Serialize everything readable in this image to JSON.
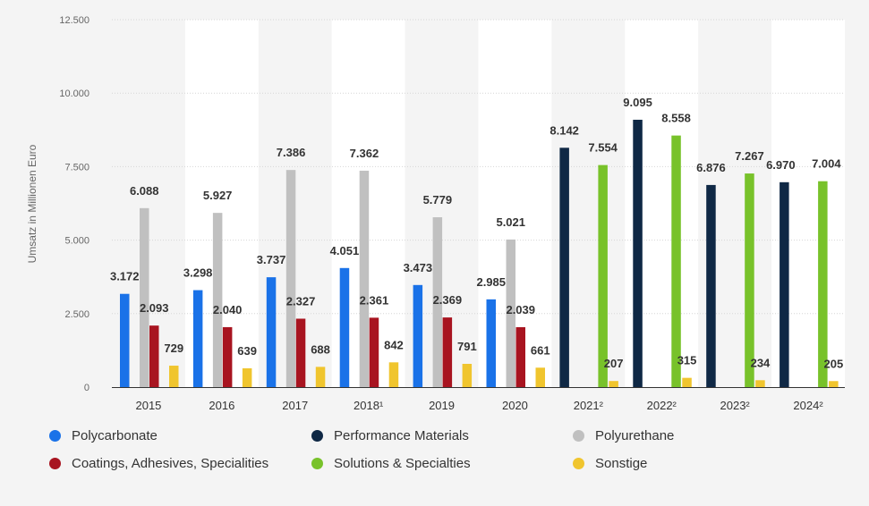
{
  "chart_data": {
    "type": "bar",
    "ylabel": "Umsatz in Millionen Euro",
    "xlabel": "",
    "ylim": [
      0,
      12500
    ],
    "yticks": [
      0,
      2500,
      5000,
      7500,
      10000,
      12500
    ],
    "ytick_labels": [
      "0",
      "2.500",
      "5.000",
      "7.500",
      "10.000",
      "12.500"
    ],
    "categories": [
      "2015",
      "2016",
      "2017",
      "2018¹",
      "2019",
      "2020",
      "2021²",
      "2022²",
      "2023²",
      "2024²"
    ],
    "series": [
      {
        "name": "Polycarbonate",
        "color": "#1a72e8",
        "values": [
          3172,
          3298,
          3737,
          4051,
          3473,
          2985,
          null,
          null,
          null,
          null
        ],
        "labels": [
          "3.172",
          "3.298",
          "3.737",
          "4.051",
          "3.473",
          "2.985",
          "",
          "",
          "",
          ""
        ]
      },
      {
        "name": "Performance Materials",
        "color": "#0f2845",
        "values": [
          null,
          null,
          null,
          null,
          null,
          null,
          8142,
          9095,
          6876,
          6970
        ],
        "labels": [
          "",
          "",
          "",
          "",
          "",
          "",
          "8.142",
          "9.095",
          "6.876",
          "6.970"
        ]
      },
      {
        "name": "Polyurethane",
        "color": "#c0c0c0",
        "values": [
          6088,
          5927,
          7386,
          7362,
          5779,
          5021,
          null,
          null,
          null,
          null
        ],
        "labels": [
          "6.088",
          "5.927",
          "7.386",
          "7.362",
          "5.779",
          "5.021",
          "",
          "",
          "",
          ""
        ]
      },
      {
        "name": "Coatings, Adhesives, Specialities",
        "color": "#a81420",
        "values": [
          2093,
          2040,
          2327,
          2361,
          2369,
          2039,
          null,
          null,
          null,
          null
        ],
        "labels": [
          "2.093",
          "2.040",
          "2.327",
          "2.361",
          "2.369",
          "2.039",
          "",
          "",
          "",
          ""
        ]
      },
      {
        "name": "Solutions & Specialties",
        "color": "#78c22a",
        "values": [
          null,
          null,
          null,
          null,
          null,
          null,
          7554,
          8558,
          7267,
          7004
        ],
        "labels": [
          "",
          "",
          "",
          "",
          "",
          "",
          "7.554",
          "8.558",
          "7.267",
          "7.004"
        ]
      },
      {
        "name": "Sonstige",
        "color": "#f0c52e",
        "values": [
          729,
          639,
          688,
          842,
          791,
          661,
          207,
          315,
          234,
          205
        ],
        "labels": [
          "729",
          "639",
          "688",
          "842",
          "791",
          "661",
          "207",
          "315",
          "234",
          "205"
        ]
      }
    ],
    "legend": {
      "position": "bottom",
      "items": [
        {
          "label": "Polycarbonate",
          "color": "#1a72e8"
        },
        {
          "label": "Performance Materials",
          "color": "#0f2845"
        },
        {
          "label": "Polyurethane",
          "color": "#c0c0c0"
        },
        {
          "label": "Coatings, Adhesives, Specialities",
          "color": "#a81420"
        },
        {
          "label": "Solutions & Specialties",
          "color": "#78c22a"
        },
        {
          "label": "Sonstige",
          "color": "#f0c52e"
        }
      ]
    },
    "grid": true,
    "background": "#f4f4f4",
    "band_color": "#ffffff"
  }
}
